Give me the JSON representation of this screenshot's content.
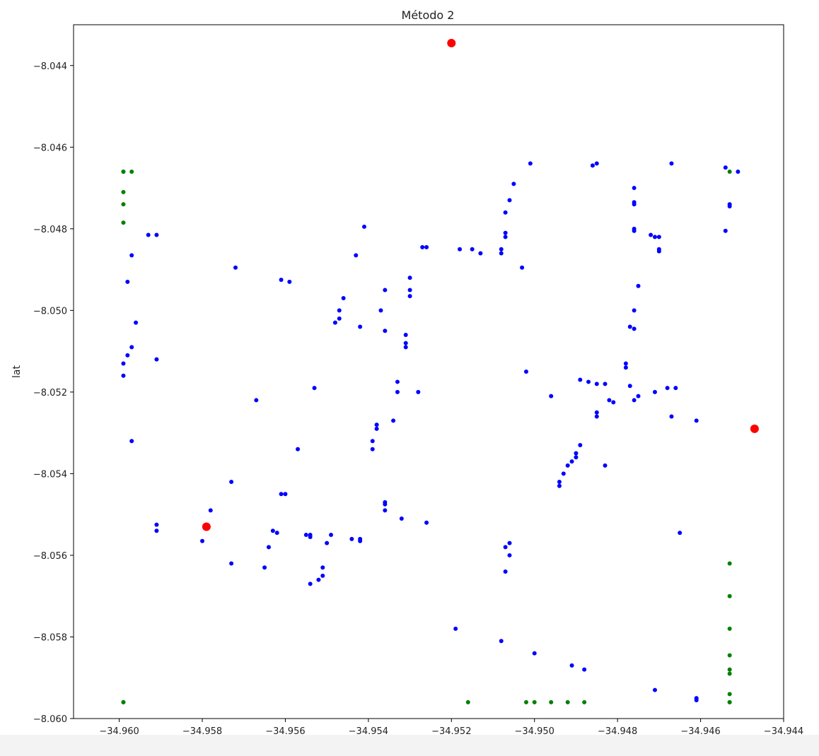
{
  "chart_data": {
    "type": "scatter",
    "title": "Método 2",
    "xlabel": "lon",
    "ylabel": "lat",
    "xlim": [
      -34.9611,
      -34.944
    ],
    "ylim": [
      -8.06,
      -8.043
    ],
    "xticks": [
      -34.96,
      -34.958,
      -34.956,
      -34.954,
      -34.952,
      -34.95,
      -34.948,
      -34.946,
      -34.944
    ],
    "xtick_labels": [
      "−34.960",
      "−34.958",
      "−34.956",
      "−34.954",
      "−34.952",
      "−34.950",
      "−34.948",
      "−34.946",
      "−34.944"
    ],
    "yticks": [
      -8.044,
      -8.046,
      -8.048,
      -8.05,
      -8.052,
      -8.054,
      -8.056,
      -8.058,
      -8.06
    ],
    "ytick_labels": [
      "−8.044",
      "−8.046",
      "−8.048",
      "−8.050",
      "−8.052",
      "−8.054",
      "−8.056",
      "−8.058",
      "−8.060"
    ],
    "grid": false,
    "series": [
      {
        "color": "#0000ff",
        "marker_size": 6,
        "points": [
          [
            -34.9593,
            -8.04815
          ],
          [
            -34.9591,
            -8.04815
          ],
          [
            -34.9597,
            -8.04865
          ],
          [
            -34.9598,
            -8.0493
          ],
          [
            -34.9596,
            -8.0503
          ],
          [
            -34.9597,
            -8.0509
          ],
          [
            -34.9598,
            -8.0511
          ],
          [
            -34.9599,
            -8.0513
          ],
          [
            -34.9599,
            -8.0516
          ],
          [
            -34.9591,
            -8.0512
          ],
          [
            -34.9597,
            -8.0532
          ],
          [
            -34.9591,
            -8.0554
          ],
          [
            -34.9591,
            -8.05525
          ],
          [
            -34.958,
            -8.05565
          ],
          [
            -34.9578,
            -8.0549
          ],
          [
            -34.9572,
            -8.04895
          ],
          [
            -34.9573,
            -8.0542
          ],
          [
            -34.9573,
            -8.0562
          ],
          [
            -34.9567,
            -8.0522
          ],
          [
            -34.9565,
            -8.0563
          ],
          [
            -34.9564,
            -8.0558
          ],
          [
            -34.9563,
            -8.0554
          ],
          [
            -34.9562,
            -8.05545
          ],
          [
            -34.9561,
            -8.0545
          ],
          [
            -34.956,
            -8.0545
          ],
          [
            -34.9561,
            -8.04925
          ],
          [
            -34.9559,
            -8.0493
          ],
          [
            -34.9557,
            -8.0534
          ],
          [
            -34.9554,
            -8.0555
          ],
          [
            -34.9554,
            -8.05555
          ],
          [
            -34.9555,
            -8.0555
          ],
          [
            -34.9553,
            -8.0519
          ],
          [
            -34.9554,
            -8.0567
          ],
          [
            -34.9552,
            -8.0566
          ],
          [
            -34.9551,
            -8.0565
          ],
          [
            -34.9551,
            -8.0563
          ],
          [
            -34.955,
            -8.0557
          ],
          [
            -34.9549,
            -8.0555
          ],
          [
            -34.9548,
            -8.0503
          ],
          [
            -34.9547,
            -8.0502
          ],
          [
            -34.9547,
            -8.05
          ],
          [
            -34.9546,
            -8.0497
          ],
          [
            -34.9544,
            -8.0556
          ],
          [
            -34.9543,
            -8.04865
          ],
          [
            -34.9542,
            -8.0556
          ],
          [
            -34.9542,
            -8.05565
          ],
          [
            -34.9542,
            -8.0504
          ],
          [
            -34.9541,
            -8.04795
          ],
          [
            -34.9539,
            -8.0534
          ],
          [
            -34.9539,
            -8.0532
          ],
          [
            -34.9538,
            -8.0529
          ],
          [
            -34.9538,
            -8.0528
          ],
          [
            -34.9537,
            -8.05
          ],
          [
            -34.9536,
            -8.0547
          ],
          [
            -34.9536,
            -8.05475
          ],
          [
            -34.9536,
            -8.0549
          ],
          [
            -34.9536,
            -8.0495
          ],
          [
            -34.9536,
            -8.0505
          ],
          [
            -34.9534,
            -8.0527
          ],
          [
            -34.9533,
            -8.052
          ],
          [
            -34.9533,
            -8.05175
          ],
          [
            -34.9532,
            -8.0551
          ],
          [
            -34.9531,
            -8.0506
          ],
          [
            -34.9531,
            -8.0508
          ],
          [
            -34.9531,
            -8.0509
          ],
          [
            -34.953,
            -8.0495
          ],
          [
            -34.953,
            -8.04965
          ],
          [
            -34.953,
            -8.0492
          ],
          [
            -34.9528,
            -8.052
          ],
          [
            -34.9527,
            -8.04845
          ],
          [
            -34.9526,
            -8.04845
          ],
          [
            -34.9526,
            -8.0552
          ],
          [
            -34.9519,
            -8.0578
          ],
          [
            -34.9518,
            -8.0485
          ],
          [
            -34.9515,
            -8.0485
          ],
          [
            -34.9513,
            -8.0486
          ],
          [
            -34.9508,
            -8.0485
          ],
          [
            -34.9508,
            -8.0486
          ],
          [
            -34.9508,
            -8.0581
          ],
          [
            -34.9507,
            -8.0558
          ],
          [
            -34.9507,
            -8.0564
          ],
          [
            -34.9507,
            -8.0481
          ],
          [
            -34.9507,
            -8.0482
          ],
          [
            -34.9507,
            -8.0476
          ],
          [
            -34.9506,
            -8.0473
          ],
          [
            -34.9506,
            -8.056
          ],
          [
            -34.9506,
            -8.0557
          ],
          [
            -34.9505,
            -8.0469
          ],
          [
            -34.9503,
            -8.04895
          ],
          [
            -34.9502,
            -8.0515
          ],
          [
            -34.9501,
            -8.0464
          ],
          [
            -34.95,
            -8.0584
          ],
          [
            -34.9496,
            -8.0521
          ],
          [
            -34.9494,
            -8.0543
          ],
          [
            -34.9494,
            -8.0542
          ],
          [
            -34.9493,
            -8.054
          ],
          [
            -34.9492,
            -8.0538
          ],
          [
            -34.9491,
            -8.0537
          ],
          [
            -34.949,
            -8.0536
          ],
          [
            -34.949,
            -8.0535
          ],
          [
            -34.9491,
            -8.0587
          ],
          [
            -34.9489,
            -8.0517
          ],
          [
            -34.9489,
            -8.0533
          ],
          [
            -34.9488,
            -8.0588
          ],
          [
            -34.9487,
            -8.05175
          ],
          [
            -34.9486,
            -8.04645
          ],
          [
            -34.9485,
            -8.0518
          ],
          [
            -34.9485,
            -8.0526
          ],
          [
            -34.9485,
            -8.0525
          ],
          [
            -34.9485,
            -8.0464
          ],
          [
            -34.9483,
            -8.0518
          ],
          [
            -34.9483,
            -8.0538
          ],
          [
            -34.9482,
            -8.0522
          ],
          [
            -34.9481,
            -8.05225
          ],
          [
            -34.9478,
            -8.0514
          ],
          [
            -34.9478,
            -8.0513
          ],
          [
            -34.9477,
            -8.05185
          ],
          [
            -34.9477,
            -8.0504
          ],
          [
            -34.9476,
            -8.05
          ],
          [
            -34.9476,
            -8.05045
          ],
          [
            -34.9476,
            -8.04805
          ],
          [
            -34.9476,
            -8.048
          ],
          [
            -34.9476,
            -8.04735
          ],
          [
            -34.9476,
            -8.0474
          ],
          [
            -34.9476,
            -8.0522
          ],
          [
            -34.9476,
            -8.047
          ],
          [
            -34.9475,
            -8.0494
          ],
          [
            -34.9475,
            -8.0521
          ],
          [
            -34.9472,
            -8.04815
          ],
          [
            -34.9471,
            -8.0482
          ],
          [
            -34.9471,
            -8.052
          ],
          [
            -34.9471,
            -8.0593
          ],
          [
            -34.947,
            -8.0482
          ],
          [
            -34.947,
            -8.04855
          ],
          [
            -34.947,
            -8.0485
          ],
          [
            -34.9468,
            -8.0519
          ],
          [
            -34.9467,
            -8.0464
          ],
          [
            -34.9467,
            -8.0526
          ],
          [
            -34.9466,
            -8.0519
          ],
          [
            -34.9465,
            -8.05545
          ],
          [
            -34.9461,
            -8.0595
          ],
          [
            -34.9461,
            -8.05955
          ],
          [
            -34.9461,
            -8.0527
          ],
          [
            -34.9454,
            -8.04805
          ],
          [
            -34.9454,
            -8.0465
          ],
          [
            -34.9453,
            -8.0474
          ],
          [
            -34.9453,
            -8.04745
          ],
          [
            -34.9451,
            -8.0466
          ]
        ]
      },
      {
        "color": "#008000",
        "marker_size": 6,
        "points": [
          [
            -34.9599,
            -8.0466
          ],
          [
            -34.9599,
            -8.0466
          ],
          [
            -34.9597,
            -8.0466
          ],
          [
            -34.9599,
            -8.0471
          ],
          [
            -34.9599,
            -8.0474
          ],
          [
            -34.9599,
            -8.04785
          ],
          [
            -34.9599,
            -8.0596
          ],
          [
            -34.9599,
            -8.0596
          ],
          [
            -34.9516,
            -8.0596
          ],
          [
            -34.9502,
            -8.0596
          ],
          [
            -34.95,
            -8.0596
          ],
          [
            -34.9496,
            -8.0596
          ],
          [
            -34.9492,
            -8.0596
          ],
          [
            -34.9488,
            -8.0596
          ],
          [
            -34.9453,
            -8.0466
          ],
          [
            -34.9453,
            -8.0562
          ],
          [
            -34.9453,
            -8.057
          ],
          [
            -34.9453,
            -8.0578
          ],
          [
            -34.9453,
            -8.05845
          ],
          [
            -34.9453,
            -8.0588
          ],
          [
            -34.9453,
            -8.0589
          ],
          [
            -34.9453,
            -8.0594
          ],
          [
            -34.9453,
            -8.0596
          ],
          [
            -34.9453,
            -8.0596
          ]
        ]
      },
      {
        "color": "#ff0000",
        "marker_size": 12,
        "points": [
          [
            -34.952,
            -8.04345
          ],
          [
            -34.9579,
            -8.0553
          ],
          [
            -34.9447,
            -8.0529
          ]
        ]
      }
    ]
  }
}
